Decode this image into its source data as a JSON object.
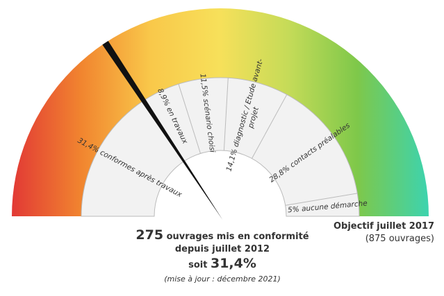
{
  "chart_data": {
    "type": "gauge",
    "max": 100,
    "segments": [
      {
        "value": 31.4,
        "label": "31,4% conformes après travaux"
      },
      {
        "value": 8.9,
        "label": "8,9% en travaux"
      },
      {
        "value": 11.5,
        "label": "11,5% scénario choisi"
      },
      {
        "value": 14.1,
        "label": "14,1% diagnostic / Etude avant-",
        "label2": "projet"
      },
      {
        "value": 28.8,
        "label": "28,8% contacts préalables"
      },
      {
        "value": 5,
        "label": "5% aucune démarche"
      }
    ],
    "needle_value": 31.4,
    "color_scale": [
      "#e23a35",
      "#f1852f",
      "#f9c84a",
      "#f7e05a",
      "#c5db58",
      "#7ec84a",
      "#3ed3ac"
    ]
  },
  "caption": {
    "count": "275",
    "count_text": "ouvrages mis en conformité",
    "since": "depuis juillet 2012",
    "soit": "soit",
    "percent": "31,4%",
    "update": "(mise à jour : décembre 2021)"
  },
  "target": {
    "title": "Objectif juillet 2017",
    "detail": "(875 ouvrages)"
  },
  "colors": {
    "inner_fill": "#f2f2f2",
    "divider": "#bbbbbb",
    "needle": "#111111"
  }
}
